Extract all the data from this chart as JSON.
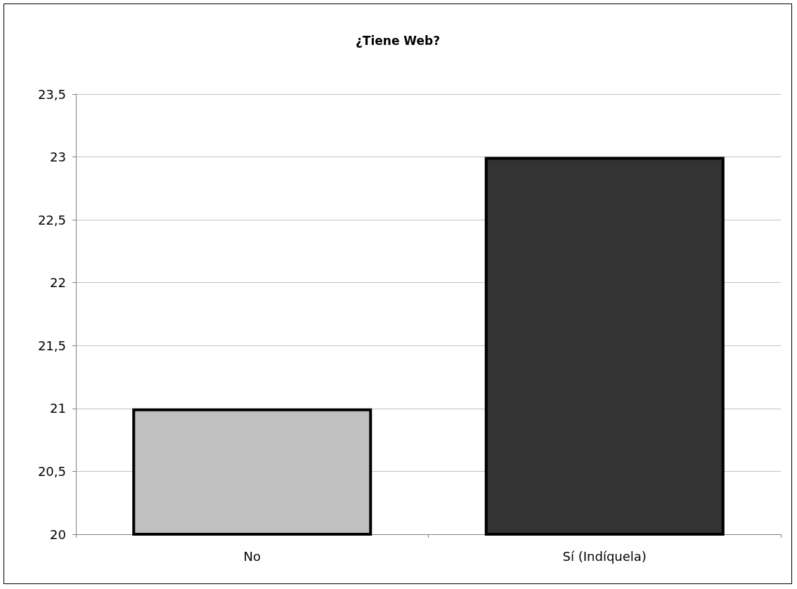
{
  "chart_data": {
    "type": "bar",
    "title": "¿Tiene Web?",
    "categories": [
      "No",
      "Sí (Indíquela)"
    ],
    "values": [
      21,
      23
    ],
    "colors": [
      "#c0c0c0",
      "#333333"
    ],
    "ylim": [
      20,
      23.5
    ],
    "yticks": [
      20,
      {
        "value": 20.5,
        "label": "20,5"
      },
      21,
      {
        "value": 21.5,
        "label": "21,5"
      },
      22,
      {
        "value": 22.5,
        "label": "22,5"
      },
      23,
      {
        "value": 23.5,
        "label": "23,5"
      }
    ],
    "grid": "y"
  }
}
